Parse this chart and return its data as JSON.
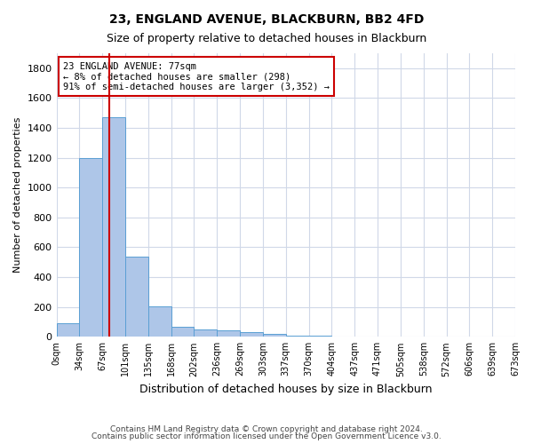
{
  "title1": "23, ENGLAND AVENUE, BLACKBURN, BB2 4FD",
  "title2": "Size of property relative to detached houses in Blackburn",
  "xlabel": "Distribution of detached houses by size in Blackburn",
  "ylabel": "Number of detached properties",
  "bin_labels": [
    "0sqm",
    "34sqm",
    "67sqm",
    "101sqm",
    "135sqm",
    "168sqm",
    "202sqm",
    "236sqm",
    "269sqm",
    "303sqm",
    "337sqm",
    "370sqm",
    "404sqm",
    "437sqm",
    "471sqm",
    "505sqm",
    "538sqm",
    "572sqm",
    "606sqm",
    "639sqm",
    "673sqm"
  ],
  "bar_values": [
    90,
    1200,
    1470,
    540,
    205,
    65,
    50,
    42,
    30,
    22,
    10,
    5,
    2,
    0,
    0,
    0,
    0,
    0,
    0,
    0
  ],
  "bar_color": "#aec6e8",
  "bar_edge_color": "#5a9fd4",
  "vline_color": "#cc0000",
  "annotation_text": "23 ENGLAND AVENUE: 77sqm\n← 8% of detached houses are smaller (298)\n91% of semi-detached houses are larger (3,352) →",
  "annotation_box_color": "#ffffff",
  "annotation_box_edge": "#cc0000",
  "ylim": [
    0,
    1900
  ],
  "yticks": [
    0,
    200,
    400,
    600,
    800,
    1000,
    1200,
    1400,
    1600,
    1800
  ],
  "footer1": "Contains HM Land Registry data © Crown copyright and database right 2024.",
  "footer2": "Contains public sector information licensed under the Open Government Licence v3.0.",
  "bg_color": "#ffffff",
  "grid_color": "#d0d8e8"
}
